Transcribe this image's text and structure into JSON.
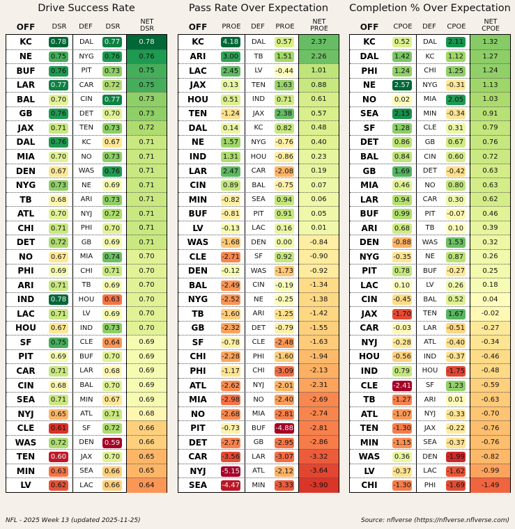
{
  "footer": {
    "left": "NFL - 2025 Week 13 (updated 2025-11-25)",
    "right": "Source: nflverse (https://nflverse.nflverse.com)"
  },
  "chart_data": [
    {
      "type": "table",
      "title": "Drive Success Rate",
      "headers": {
        "off": "OFF",
        "v1": "DSR",
        "def": "DEF",
        "v2": "DSR",
        "net_line1": "NET",
        "net_line2": "DSR"
      },
      "color_domain": [
        0.59,
        0.78
      ],
      "rows": [
        {
          "off": "KC",
          "v1": "0.78",
          "def": "DAL",
          "v2": "0.77",
          "net": "0.78"
        },
        {
          "off": "NE",
          "v1": "0.75",
          "def": "NYG",
          "v2": "0.76",
          "net": "0.76"
        },
        {
          "off": "BUF",
          "v1": "0.76",
          "def": "PIT",
          "v2": "0.73",
          "net": "0.75"
        },
        {
          "off": "LAR",
          "v1": "0.77",
          "def": "CAR",
          "v2": "0.72",
          "net": "0.75"
        },
        {
          "off": "BAL",
          "v1": "0.70",
          "def": "CIN",
          "v2": "0.77",
          "net": "0.73"
        },
        {
          "off": "GB",
          "v1": "0.76",
          "def": "DET",
          "v2": "0.70",
          "net": "0.73"
        },
        {
          "off": "JAX",
          "v1": "0.71",
          "def": "TEN",
          "v2": "0.73",
          "net": "0.72"
        },
        {
          "off": "DAL",
          "v1": "0.76",
          "def": "KC",
          "v2": "0.67",
          "net": "0.71"
        },
        {
          "off": "MIA",
          "v1": "0.70",
          "def": "NO",
          "v2": "0.73",
          "net": "0.71"
        },
        {
          "off": "DEN",
          "v1": "0.67",
          "def": "WAS",
          "v2": "0.76",
          "net": "0.71"
        },
        {
          "off": "NYG",
          "v1": "0.73",
          "def": "NE",
          "v2": "0.69",
          "net": "0.71"
        },
        {
          "off": "TB",
          "v1": "0.68",
          "def": "ARI",
          "v2": "0.73",
          "net": "0.71"
        },
        {
          "off": "ATL",
          "v1": "0.70",
          "def": "NYJ",
          "v2": "0.72",
          "net": "0.71"
        },
        {
          "off": "CHI",
          "v1": "0.71",
          "def": "PHI",
          "v2": "0.70",
          "net": "0.71"
        },
        {
          "off": "DET",
          "v1": "0.72",
          "def": "GB",
          "v2": "0.69",
          "net": "0.71"
        },
        {
          "off": "NO",
          "v1": "0.67",
          "def": "MIA",
          "v2": "0.74",
          "net": "0.70"
        },
        {
          "off": "PHI",
          "v1": "0.69",
          "def": "CHI",
          "v2": "0.71",
          "net": "0.70"
        },
        {
          "off": "ARI",
          "v1": "0.71",
          "def": "TB",
          "v2": "0.69",
          "net": "0.70"
        },
        {
          "off": "IND",
          "v1": "0.78",
          "def": "HOU",
          "v2": "0.63",
          "net": "0.70"
        },
        {
          "off": "LAC",
          "v1": "0.71",
          "def": "LV",
          "v2": "0.69",
          "net": "0.70"
        },
        {
          "off": "HOU",
          "v1": "0.67",
          "def": "IND",
          "v2": "0.73",
          "net": "0.70"
        },
        {
          "off": "SF",
          "v1": "0.75",
          "def": "CLE",
          "v2": "0.64",
          "net": "0.69"
        },
        {
          "off": "PIT",
          "v1": "0.69",
          "def": "BUF",
          "v2": "0.70",
          "net": "0.69"
        },
        {
          "off": "CAR",
          "v1": "0.71",
          "def": "LAR",
          "v2": "0.68",
          "net": "0.69"
        },
        {
          "off": "CIN",
          "v1": "0.68",
          "def": "BAL",
          "v2": "0.70",
          "net": "0.69"
        },
        {
          "off": "SEA",
          "v1": "0.71",
          "def": "MIN",
          "v2": "0.67",
          "net": "0.69"
        },
        {
          "off": "NYJ",
          "v1": "0.65",
          "def": "ATL",
          "v2": "0.71",
          "net": "0.68"
        },
        {
          "off": "CLE",
          "v1": "0.61",
          "def": "SF",
          "v2": "0.72",
          "net": "0.66"
        },
        {
          "off": "WAS",
          "v1": "0.72",
          "def": "DEN",
          "v2": "0.59",
          "net": "0.66"
        },
        {
          "off": "TEN",
          "v1": "0.60",
          "def": "JAX",
          "v2": "0.70",
          "net": "0.65"
        },
        {
          "off": "MIN",
          "v1": "0.63",
          "def": "SEA",
          "v2": "0.66",
          "net": "0.65"
        },
        {
          "off": "LV",
          "v1": "0.62",
          "def": "LAC",
          "v2": "0.66",
          "net": "0.64"
        }
      ]
    },
    {
      "type": "table",
      "title": "Pass Rate Over Expectation",
      "headers": {
        "off": "OFF",
        "v1": "PROE",
        "def": "DEF",
        "v2": "PROE",
        "net_line1": "NET",
        "net_line2": "PROE"
      },
      "color_domain": [
        -4.88,
        4.18
      ],
      "rows": [
        {
          "off": "KC",
          "v1": "4.18",
          "def": "DAL",
          "v2": "0.57",
          "net": "2.37"
        },
        {
          "off": "ARI",
          "v1": "3.00",
          "def": "TB",
          "v2": "1.51",
          "net": "2.26"
        },
        {
          "off": "LAC",
          "v1": "2.45",
          "def": "LV",
          "v2": "-0.44",
          "net": "1.01"
        },
        {
          "off": "JAX",
          "v1": "0.13",
          "def": "TEN",
          "v2": "1.63",
          "net": "0.88"
        },
        {
          "off": "HOU",
          "v1": "0.51",
          "def": "IND",
          "v2": "0.71",
          "net": "0.61"
        },
        {
          "off": "TEN",
          "v1": "-1.24",
          "def": "JAX",
          "v2": "2.38",
          "net": "0.57"
        },
        {
          "off": "DAL",
          "v1": "0.14",
          "def": "KC",
          "v2": "0.82",
          "net": "0.48"
        },
        {
          "off": "NE",
          "v1": "1.57",
          "def": "NYG",
          "v2": "-0.76",
          "net": "0.40"
        },
        {
          "off": "IND",
          "v1": "1.31",
          "def": "HOU",
          "v2": "-0.86",
          "net": "0.23"
        },
        {
          "off": "LAR",
          "v1": "2.47",
          "def": "CAR",
          "v2": "-2.08",
          "net": "0.19"
        },
        {
          "off": "CIN",
          "v1": "0.89",
          "def": "BAL",
          "v2": "-0.75",
          "net": "0.07"
        },
        {
          "off": "MIN",
          "v1": "-0.82",
          "def": "SEA",
          "v2": "0.94",
          "net": "0.06"
        },
        {
          "off": "BUF",
          "v1": "-0.81",
          "def": "PIT",
          "v2": "0.91",
          "net": "0.05"
        },
        {
          "off": "LV",
          "v1": "-0.13",
          "def": "LAC",
          "v2": "0.16",
          "net": "0.01"
        },
        {
          "off": "WAS",
          "v1": "-1.68",
          "def": "DEN",
          "v2": "0.00",
          "net": "-0.84"
        },
        {
          "off": "CLE",
          "v1": "-2.71",
          "def": "SF",
          "v2": "0.92",
          "net": "-0.90"
        },
        {
          "off": "DEN",
          "v1": "-0.12",
          "def": "WAS",
          "v2": "-1.73",
          "net": "-0.92"
        },
        {
          "off": "BAL",
          "v1": "-2.49",
          "def": "CIN",
          "v2": "-0.19",
          "net": "-1.34"
        },
        {
          "off": "NYG",
          "v1": "-2.52",
          "def": "NE",
          "v2": "-0.25",
          "net": "-1.38"
        },
        {
          "off": "TB",
          "v1": "-1.60",
          "def": "ARI",
          "v2": "-1.25",
          "net": "-1.42"
        },
        {
          "off": "GB",
          "v1": "-2.32",
          "def": "DET",
          "v2": "-0.79",
          "net": "-1.55"
        },
        {
          "off": "SF",
          "v1": "-0.78",
          "def": "CLE",
          "v2": "-2.48",
          "net": "-1.63"
        },
        {
          "off": "CHI",
          "v1": "-2.28",
          "def": "PHI",
          "v2": "-1.60",
          "net": "-1.94"
        },
        {
          "off": "PHI",
          "v1": "-1.17",
          "def": "CHI",
          "v2": "-3.09",
          "net": "-2.13"
        },
        {
          "off": "ATL",
          "v1": "-2.62",
          "def": "NYJ",
          "v2": "-2.01",
          "net": "-2.31"
        },
        {
          "off": "MIA",
          "v1": "-2.98",
          "def": "NO",
          "v2": "-2.40",
          "net": "-2.69"
        },
        {
          "off": "NO",
          "v1": "-2.68",
          "def": "MIA",
          "v2": "-2.81",
          "net": "-2.74"
        },
        {
          "off": "PIT",
          "v1": "-0.73",
          "def": "BUF",
          "v2": "-4.88",
          "net": "-2.81"
        },
        {
          "off": "DET",
          "v1": "-2.77",
          "def": "GB",
          "v2": "-2.95",
          "net": "-2.86"
        },
        {
          "off": "CAR",
          "v1": "-3.56",
          "def": "LAR",
          "v2": "-3.07",
          "net": "-3.32"
        },
        {
          "off": "NYJ",
          "v1": "-5.15",
          "def": "ATL",
          "v2": "-2.12",
          "net": "-3.64"
        },
        {
          "off": "SEA",
          "v1": "-4.47",
          "def": "MIN",
          "v2": "-3.33",
          "net": "-3.90"
        }
      ]
    },
    {
      "type": "table",
      "title": "Completion % Over Expectation",
      "headers": {
        "off": "OFF",
        "v1": "CPOE",
        "def": "DEF",
        "v2": "CPOE",
        "net_line1": "NET",
        "net_line2": "CPOE"
      },
      "color_domain": [
        -2.41,
        2.57
      ],
      "rows": [
        {
          "off": "KC",
          "v1": "0.52",
          "def": "DAL",
          "v2": "2.11",
          "net": "1.32"
        },
        {
          "off": "DAL",
          "v1": "1.42",
          "def": "KC",
          "v2": "1.12",
          "net": "1.27"
        },
        {
          "off": "PHI",
          "v1": "1.24",
          "def": "CHI",
          "v2": "1.25",
          "net": "1.24"
        },
        {
          "off": "NE",
          "v1": "2.57",
          "def": "NYG",
          "v2": "-0.31",
          "net": "1.13"
        },
        {
          "off": "NO",
          "v1": "0.02",
          "def": "MIA",
          "v2": "2.05",
          "net": "1.03"
        },
        {
          "off": "SEA",
          "v1": "2.15",
          "def": "MIN",
          "v2": "-0.34",
          "net": "0.91"
        },
        {
          "off": "SF",
          "v1": "1.28",
          "def": "CLE",
          "v2": "0.31",
          "net": "0.79"
        },
        {
          "off": "DET",
          "v1": "0.86",
          "def": "GB",
          "v2": "0.67",
          "net": "0.76"
        },
        {
          "off": "BAL",
          "v1": "0.84",
          "def": "CIN",
          "v2": "0.60",
          "net": "0.72"
        },
        {
          "off": "GB",
          "v1": "1.69",
          "def": "DET",
          "v2": "-0.42",
          "net": "0.63"
        },
        {
          "off": "MIA",
          "v1": "0.46",
          "def": "NO",
          "v2": "0.80",
          "net": "0.63"
        },
        {
          "off": "LAR",
          "v1": "0.94",
          "def": "CAR",
          "v2": "0.30",
          "net": "0.62"
        },
        {
          "off": "BUF",
          "v1": "0.99",
          "def": "PIT",
          "v2": "-0.07",
          "net": "0.46"
        },
        {
          "off": "ARI",
          "v1": "0.68",
          "def": "TB",
          "v2": "0.10",
          "net": "0.39"
        },
        {
          "off": "DEN",
          "v1": "-0.88",
          "def": "WAS",
          "v2": "1.53",
          "net": "0.32"
        },
        {
          "off": "NYG",
          "v1": "-0.35",
          "def": "NE",
          "v2": "0.87",
          "net": "0.26"
        },
        {
          "off": "PIT",
          "v1": "0.78",
          "def": "BUF",
          "v2": "-0.27",
          "net": "0.25"
        },
        {
          "off": "LAC",
          "v1": "0.10",
          "def": "LV",
          "v2": "0.26",
          "net": "0.18"
        },
        {
          "off": "CIN",
          "v1": "-0.45",
          "def": "BAL",
          "v2": "0.52",
          "net": "0.04"
        },
        {
          "off": "JAX",
          "v1": "-1.70",
          "def": "TEN",
          "v2": "1.67",
          "net": "-0.02"
        },
        {
          "off": "CAR",
          "v1": "-0.03",
          "def": "LAR",
          "v2": "-0.51",
          "net": "-0.27"
        },
        {
          "off": "NYJ",
          "v1": "-0.28",
          "def": "ATL",
          "v2": "-0.40",
          "net": "-0.34"
        },
        {
          "off": "HOU",
          "v1": "-0.56",
          "def": "IND",
          "v2": "-0.37",
          "net": "-0.46"
        },
        {
          "off": "IND",
          "v1": "0.79",
          "def": "HOU",
          "v2": "-1.75",
          "net": "-0.48"
        },
        {
          "off": "CLE",
          "v1": "-2.41",
          "def": "SF",
          "v2": "1.23",
          "net": "-0.59"
        },
        {
          "off": "TB",
          "v1": "-1.27",
          "def": "ARI",
          "v2": "0.01",
          "net": "-0.63"
        },
        {
          "off": "ATL",
          "v1": "-1.07",
          "def": "NYJ",
          "v2": "-0.33",
          "net": "-0.70"
        },
        {
          "off": "TEN",
          "v1": "-1.30",
          "def": "JAX",
          "v2": "-0.22",
          "net": "-0.76"
        },
        {
          "off": "MIN",
          "v1": "-1.15",
          "def": "SEA",
          "v2": "-0.37",
          "net": "-0.76"
        },
        {
          "off": "WAS",
          "v1": "0.36",
          "def": "DEN",
          "v2": "-1.99",
          "net": "-0.82"
        },
        {
          "off": "LV",
          "v1": "-0.37",
          "def": "LAC",
          "v2": "-1.62",
          "net": "-0.99"
        },
        {
          "off": "CHI",
          "v1": "-1.30",
          "def": "PHI",
          "v2": "-1.69",
          "net": "-1.49"
        }
      ]
    }
  ]
}
